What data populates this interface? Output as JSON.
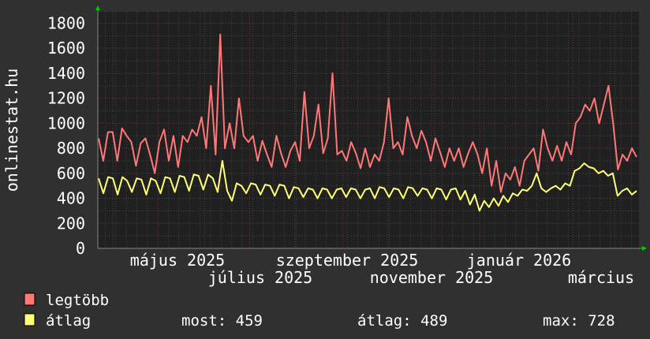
{
  "chart_data": {
    "type": "line",
    "ylabel": "onlinestat.hu",
    "ylim": [
      0,
      1800
    ],
    "yticks": [
      0,
      200,
      400,
      600,
      800,
      1000,
      1200,
      1400,
      1600,
      1800
    ],
    "xtick_labels": [
      "május 2025",
      "július 2025",
      "szeptember 2025",
      "november 2025",
      "január 2026",
      "március"
    ],
    "grid": true,
    "legend_placement": "bottom",
    "colors": {
      "background": "#303030",
      "plot_background": "#202020",
      "legtobb": "#ff7878",
      "atlag": "#ffff78",
      "axis_arrow": "#00cc00"
    },
    "series": [
      {
        "name": "legtöbb",
        "values": [
          880,
          700,
          930,
          930,
          700,
          960,
          900,
          850,
          660,
          840,
          880,
          750,
          600,
          850,
          950,
          700,
          900,
          650,
          900,
          850,
          950,
          900,
          1050,
          800,
          1300,
          750,
          1710,
          800,
          1000,
          800,
          1200,
          900,
          850,
          900,
          700,
          860,
          750,
          650,
          900,
          760,
          650,
          780,
          850,
          700,
          1250,
          800,
          900,
          1150,
          760,
          880,
          1400,
          750,
          780,
          700,
          850,
          760,
          640,
          800,
          650,
          750,
          700,
          850,
          1200,
          800,
          850,
          750,
          1050,
          900,
          800,
          940,
          850,
          700,
          880,
          770,
          650,
          800,
          700,
          800,
          650,
          760,
          850,
          750,
          600,
          800,
          500,
          700,
          450,
          600,
          550,
          650,
          500,
          700,
          750,
          800,
          620,
          950,
          800,
          700,
          820,
          700,
          850,
          750,
          1000,
          1050,
          1150,
          1100,
          1200,
          1000,
          1150,
          1300,
          1000,
          630,
          750,
          700,
          800,
          730
        ]
      },
      {
        "name": "átlag",
        "values": [
          560,
          440,
          570,
          560,
          430,
          570,
          540,
          450,
          560,
          550,
          430,
          560,
          540,
          440,
          570,
          560,
          450,
          580,
          570,
          460,
          590,
          580,
          470,
          590,
          560,
          450,
          700,
          460,
          380,
          520,
          500,
          440,
          520,
          510,
          430,
          510,
          500,
          420,
          510,
          500,
          400,
          490,
          480,
          410,
          480,
          470,
          400,
          480,
          470,
          400,
          470,
          480,
          410,
          480,
          470,
          400,
          470,
          480,
          400,
          490,
          480,
          410,
          480,
          470,
          400,
          490,
          480,
          420,
          480,
          470,
          400,
          480,
          470,
          390,
          470,
          480,
          390,
          460,
          350,
          430,
          300,
          380,
          330,
          400,
          340,
          420,
          370,
          440,
          420,
          470,
          460,
          500,
          600,
          480,
          450,
          480,
          500,
          470,
          520,
          500,
          620,
          640,
          680,
          650,
          640,
          600,
          620,
          580,
          600,
          420,
          460,
          480,
          430,
          459
        ]
      }
    ]
  },
  "legend": {
    "items": [
      {
        "label": "legtöbb",
        "color": "#ff7878"
      },
      {
        "label": "átlag",
        "color": "#ffff78"
      }
    ],
    "stats": {
      "most": "most: 459",
      "atlag": "átlag: 489",
      "max": "max: 728"
    }
  }
}
